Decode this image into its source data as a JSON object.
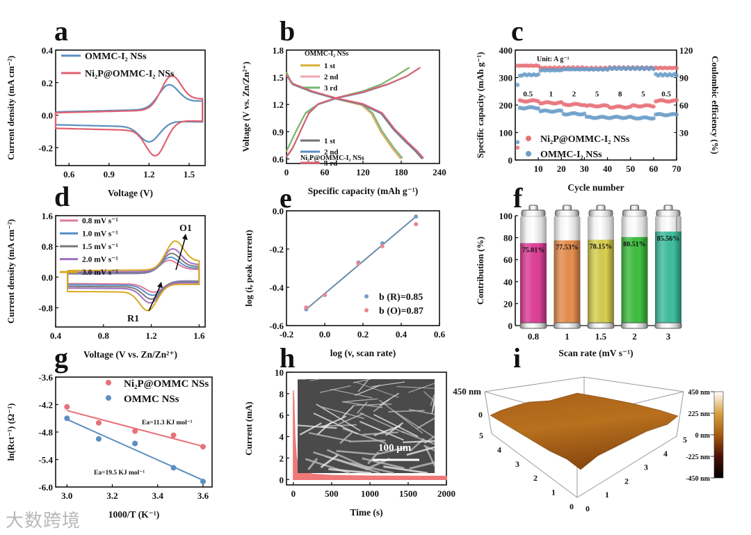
{
  "watermark": "大数跨境",
  "chart_data": [
    {
      "panel": "a",
      "type": "line",
      "xlabel": "Voltage (V)",
      "ylabel": "Current density (mA cm⁻²)",
      "xlim": [
        0.5,
        1.62
      ],
      "ylim": [
        -0.31,
        0.4
      ],
      "xticks": [
        "0.6",
        "0.9",
        "1.2",
        "1.5"
      ],
      "yticks": [
        "-0.2",
        "0.0",
        "0.2",
        "0.4"
      ],
      "series": [
        {
          "name": "OMMC-I₂ NSs",
          "color": "#5b8fc0",
          "sweep": [
            0.5,
            1.6
          ],
          "baseline": 0.02,
          "anodic_peak": {
            "E": 1.35,
            "i": 0.17
          },
          "cathodic_peak": {
            "E": 1.2,
            "i": -0.15
          },
          "end_current": 0.07
        },
        {
          "name": "Ni₂P@OMMC-I₂ NSs",
          "color": "#e06070",
          "sweep": [
            0.5,
            1.6
          ],
          "baseline": 0.015,
          "anodic_peak": {
            "E": 1.37,
            "i": 0.225
          },
          "cathodic_peak": {
            "E": 1.245,
            "i": -0.235
          },
          "end_current": 0.05
        }
      ]
    },
    {
      "panel": "b",
      "type": "line",
      "xlabel": "Specific capacity (mAh g⁻¹)",
      "ylabel": "Voltage (V vs. Zn/Zn²⁺)",
      "xlim": [
        0,
        240
      ],
      "ylim": [
        0.55,
        1.8
      ],
      "xticks": [
        "0",
        "60",
        "120",
        "180",
        "240"
      ],
      "yticks": [
        "0.6",
        "0.9",
        "1.2",
        "1.5",
        "1.8"
      ],
      "groups": [
        {
          "name": "OMMC-I₂ NSs",
          "discharge": [
            [
              0,
              1.55
            ],
            [
              8,
              1.43
            ],
            [
              40,
              1.34
            ],
            [
              80,
              1.26
            ],
            [
              120,
              1.19
            ],
            [
              135,
              1.1
            ],
            [
              150,
              0.9
            ],
            [
              168,
              0.72
            ],
            [
              182,
              0.6
            ]
          ],
          "charge": [
            [
              0,
              0.68
            ],
            [
              15,
              0.9
            ],
            [
              30,
              1.1
            ],
            [
              50,
              1.2
            ],
            [
              80,
              1.27
            ],
            [
              120,
              1.34
            ],
            [
              150,
              1.42
            ],
            [
              175,
              1.52
            ],
            [
              193,
              1.6
            ]
          ],
          "cycles": [
            {
              "name": "1 st",
              "color": "#d8b030",
              "scale": 0.985
            },
            {
              "name": "2 nd",
              "color": "#f0a8b0",
              "scale": 0.992
            },
            {
              "name": "3 rd",
              "color": "#70b870",
              "scale": 1.0
            }
          ]
        },
        {
          "name": "Ni₂P@OMMC-I₂ NSs",
          "discharge": [
            [
              0,
              1.52
            ],
            [
              10,
              1.42
            ],
            [
              40,
              1.34
            ],
            [
              80,
              1.26
            ],
            [
              120,
              1.2
            ],
            [
              150,
              1.1
            ],
            [
              170,
              0.92
            ],
            [
              190,
              0.78
            ],
            [
              205,
              0.68
            ],
            [
              215,
              0.6
            ]
          ],
          "charge": [
            [
              0,
              0.62
            ],
            [
              10,
              0.72
            ],
            [
              35,
              1.1
            ],
            [
              50,
              1.2
            ],
            [
              80,
              1.27
            ],
            [
              120,
              1.33
            ],
            [
              160,
              1.42
            ],
            [
              190,
              1.51
            ],
            [
              210,
              1.6
            ]
          ],
          "cycles": [
            {
              "name": "1 st",
              "color": "#707070",
              "scale": 0.99
            },
            {
              "name": "2 nd",
              "color": "#5b8fc0",
              "scale": 0.995
            },
            {
              "name": "3 rd",
              "color": "#e06070",
              "scale": 1.0
            }
          ]
        }
      ]
    },
    {
      "panel": "c",
      "type": "scatter",
      "xlabel": "Cycle number",
      "ylabel": "Specific capacity (mAh g⁻¹)",
      "y2label": "Coulombic efficiency (%)",
      "xlim": [
        0,
        70
      ],
      "ylim": [
        0,
        400
      ],
      "y2lim": [
        0,
        120
      ],
      "xticks": [
        "10",
        "20",
        "30",
        "40",
        "50",
        "60",
        "70"
      ],
      "yticks": [
        "0",
        "100",
        "200",
        "300",
        "400"
      ],
      "y2ticks": [
        "30",
        "60",
        "90",
        "120"
      ],
      "unit_note": "Unit: A g⁻¹",
      "rate_segments": [
        {
          "rate": "0.5",
          "cycles": [
            1,
            10
          ]
        },
        {
          "rate": "1",
          "cycles": [
            11,
            20
          ]
        },
        {
          "rate": "2",
          "cycles": [
            21,
            30
          ]
        },
        {
          "rate": "5",
          "cycles": [
            31,
            40
          ]
        },
        {
          "rate": "8",
          "cycles": [
            41,
            50
          ]
        },
        {
          "rate": "5",
          "cycles": [
            51,
            60
          ]
        },
        {
          "rate": "0.5",
          "cycles": [
            61,
            70
          ]
        }
      ],
      "series": [
        {
          "name": "Ni₂P@OMMC-I₂ NSs",
          "color": "#e87078",
          "first_capacity": 45,
          "capacity": [
            215,
            208,
            202,
            197,
            193,
            197,
            215
          ],
          "first_ce": 103,
          "ce": [
            103,
            100.5,
            100.5,
            100,
            100.5,
            100.5,
            100.5
          ]
        },
        {
          "name": "OMMC-I₂ NSs",
          "color": "#6a9cc8",
          "first_capacity": 65,
          "capacity": [
            190,
            178,
            168,
            155,
            155,
            153,
            165
          ],
          "first_ce": 82,
          "ce": [
            93,
            98,
            99,
            99,
            100,
            100,
            93
          ]
        }
      ]
    },
    {
      "panel": "d",
      "type": "line",
      "xlabel": "Voltage (V vs. Zn/Zn²⁺)",
      "ylabel": "Current density (mA cm⁻²)",
      "xlim": [
        0.4,
        1.65
      ],
      "ylim": [
        -1.3,
        1.6
      ],
      "xticks": [
        "0.4",
        "0.8",
        "1.2",
        "1.6"
      ],
      "yticks": [
        "-0.8",
        "0.0",
        "0.8",
        "1.6"
      ],
      "annotations": [
        "O1",
        "R1"
      ],
      "series": [
        {
          "name": "0.8 mV s⁻¹",
          "color": "#e07a9a",
          "baseline": 0.08,
          "anodic_peak": {
            "E": 1.35,
            "i": 0.42
          },
          "cathodic_peak": {
            "E": 1.22,
            "i": -0.38
          }
        },
        {
          "name": "1.0 mV s⁻¹",
          "color": "#5b8fc9",
          "baseline": 0.09,
          "anodic_peak": {
            "E": 1.36,
            "i": 0.5
          },
          "cathodic_peak": {
            "E": 1.21,
            "i": -0.46
          }
        },
        {
          "name": "1.5 mV s⁻¹",
          "color": "#7a7a7a",
          "baseline": 0.11,
          "anodic_peak": {
            "E": 1.37,
            "i": 0.6
          },
          "cathodic_peak": {
            "E": 1.2,
            "i": -0.56
          }
        },
        {
          "name": "2.0 mV s⁻¹",
          "color": "#a070c0",
          "baseline": 0.13,
          "anodic_peak": {
            "E": 1.38,
            "i": 0.72
          },
          "cathodic_peak": {
            "E": 1.19,
            "i": -0.66
          }
        },
        {
          "name": "3.0 mV s⁻¹",
          "color": "#d8a820",
          "baseline": 0.17,
          "anodic_peak": {
            "E": 1.4,
            "i": 0.92
          },
          "cathodic_peak": {
            "E": 1.17,
            "i": -0.86
          }
        }
      ]
    },
    {
      "panel": "e",
      "type": "scatter",
      "xlabel": "log (v, scan rate)",
      "ylabel": "log  (i, peak current)",
      "xlim": [
        -0.2,
        0.6
      ],
      "ylim": [
        -0.6,
        0.0
      ],
      "xticks": [
        "-0.2",
        "0.0",
        "0.2",
        "0.4",
        "0.6"
      ],
      "yticks": [
        "-0.6",
        "-0.4",
        "-0.2",
        "0.0"
      ],
      "x": [
        -0.097,
        0.0,
        0.176,
        0.301,
        0.477
      ],
      "series": [
        {
          "name": "b (R)=0.85",
          "color": "#7a9cc8",
          "y": [
            -0.515,
            -0.44,
            -0.27,
            -0.17,
            -0.03
          ]
        },
        {
          "name": "b (O)=0.87",
          "color": "#e88890",
          "y": [
            -0.505,
            -0.44,
            -0.275,
            -0.185,
            -0.07
          ]
        }
      ],
      "fit_color": "#6a8aa8"
    },
    {
      "panel": "f",
      "type": "bar",
      "xlabel": "Scan rate (mV s⁻¹)",
      "ylabel": "Contribution (%)",
      "ylim": [
        0,
        100
      ],
      "yticks": [
        "0",
        "20",
        "40",
        "60",
        "80",
        "100"
      ],
      "categories": [
        "0.8",
        "1",
        "1.5",
        "2",
        "3"
      ],
      "values": [
        75.01,
        77.53,
        78.15,
        80.51,
        85.56
      ],
      "labels": [
        "75.01%",
        "77.53%",
        "78.15%",
        "80.51%",
        "85.56%"
      ],
      "colors": [
        "#e0409a",
        "#e89050",
        "#d8d050",
        "#40c040",
        "#40c0a0"
      ]
    },
    {
      "panel": "g",
      "type": "scatter",
      "xlabel": "1000/T (K⁻¹)",
      "ylabel": "ln(Rct⁻¹) (Ω⁻¹)",
      "xlim": [
        2.95,
        3.64
      ],
      "ylim": [
        -6.0,
        -3.6
      ],
      "xticks": [
        "3.0",
        "3.2",
        "3.4",
        "3.6"
      ],
      "yticks": [
        "-6.0",
        "-5.4",
        "-4.8",
        "-4.2",
        "-3.6"
      ],
      "x": [
        3.0,
        3.14,
        3.3,
        3.47,
        3.6
      ],
      "series": [
        {
          "name": "Ni₂P@OMMC NSs",
          "color": "#e87078",
          "y": [
            -4.25,
            -4.6,
            -4.78,
            -4.87,
            -5.12
          ],
          "annotation": "Ea=11.3 KJ mol⁻¹"
        },
        {
          "name": "OMMC NSs",
          "color": "#5b8fc0",
          "y": [
            -4.5,
            -4.95,
            -5.05,
            -5.58,
            -5.88
          ],
          "annotation": "Ea=19.5 KJ mol⁻¹"
        }
      ]
    },
    {
      "panel": "h",
      "type": "area",
      "xlabel": "Time (s)",
      "ylabel": "Current (mA)",
      "xlim": [
        -90,
        2000
      ],
      "ylim": [
        -0.5,
        10
      ],
      "xticks": [
        "0",
        "500",
        "1000",
        "1500",
        "2000"
      ],
      "yticks": [
        "0",
        "2",
        "4",
        "6",
        "8",
        "10"
      ],
      "series": [
        {
          "name": "current",
          "color": "#f07878",
          "points": [
            [
              0,
              8.3
            ],
            [
              8,
              7
            ],
            [
              20,
              4
            ],
            [
              40,
              2
            ],
            [
              70,
              1.2
            ],
            [
              120,
              0.8
            ],
            [
              250,
              0.5
            ],
            [
              500,
              0.38
            ],
            [
              1000,
              0.32
            ],
            [
              2000,
              0.3
            ]
          ]
        }
      ],
      "inset_scale_bar": "100 μm"
    },
    {
      "panel": "i",
      "type": "surface3d",
      "z_axis_labels": [
        "450 nm",
        "0"
      ],
      "x_ticks": [
        "0",
        "1",
        "2",
        "3",
        "4",
        "5"
      ],
      "y_ticks": [
        "0",
        "1",
        "2",
        "3",
        "4",
        "5"
      ],
      "colorbar_labels": [
        "450 nm",
        "225 nm",
        "0 nm",
        "-225 nm",
        "-450 nm"
      ],
      "colormap": [
        "#ffffff",
        "#d8a040",
        "#a85a10",
        "#4a1008",
        "#000000"
      ]
    }
  ]
}
